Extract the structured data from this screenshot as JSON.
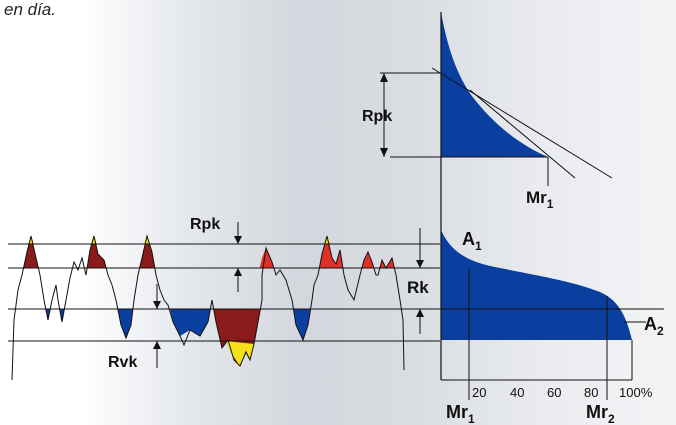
{
  "caption": "en día.",
  "colors": {
    "blue": "#0a3fa0",
    "dark_red": "#8b1a1a",
    "red": "#e0302a",
    "yellow": "#f4e11a"
  },
  "labels": {
    "rpk_top": "Rpk",
    "mr1_top": "Mr",
    "mr1_top_sub": "1",
    "rpk_profile": "Rpk",
    "rk": "Rk",
    "rvk": "Rvk",
    "a1": "A",
    "a1_sub": "1",
    "a2": "A",
    "a2_sub": "2",
    "mr1_bottom": "Mr",
    "mr1_bottom_sub": "1",
    "mr2_bottom": "Mr",
    "mr2_bottom_sub": "2"
  },
  "axis_ticks": [
    "20",
    "40",
    "60",
    "80",
    "100%"
  ]
}
